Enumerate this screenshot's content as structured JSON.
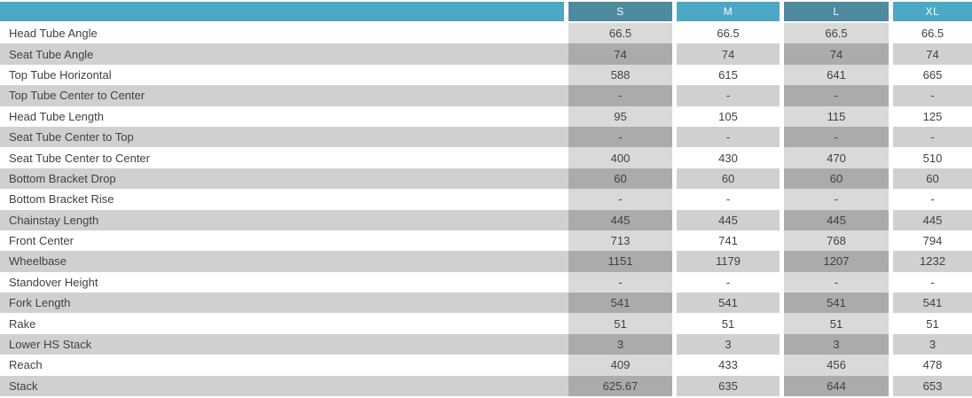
{
  "colors": {
    "header_teal_light": "#4da8c4",
    "header_teal_dark": "#4e8b9f",
    "row_gray": "#d0d0d0",
    "hl_on_white": "#d9d9d9",
    "hl_on_gray": "#ababab",
    "text_dark": "#414141",
    "header_text": "#f4fafc",
    "page_bg": "#ffffff"
  },
  "chart_data": {
    "type": "table",
    "columns": [
      {
        "label": "S",
        "highlighted": true
      },
      {
        "label": "M",
        "highlighted": false
      },
      {
        "label": "L",
        "highlighted": true
      },
      {
        "label": "XL",
        "highlighted": false
      }
    ],
    "rows": [
      {
        "label": "Head Tube Angle",
        "values": [
          "66.5",
          "66.5",
          "66.5",
          "66.5"
        ]
      },
      {
        "label": "Seat Tube Angle",
        "values": [
          "74",
          "74",
          "74",
          "74"
        ]
      },
      {
        "label": "Top Tube Horizontal",
        "values": [
          "588",
          "615",
          "641",
          "665"
        ]
      },
      {
        "label": "Top Tube Center to Center",
        "values": [
          "-",
          "-",
          "-",
          "-"
        ]
      },
      {
        "label": "Head Tube Length",
        "values": [
          "95",
          "105",
          "115",
          "125"
        ]
      },
      {
        "label": "Seat Tube Center to Top",
        "values": [
          "-",
          "-",
          "-",
          "-"
        ]
      },
      {
        "label": "Seat Tube Center to Center",
        "values": [
          "400",
          "430",
          "470",
          "510"
        ]
      },
      {
        "label": "Bottom Bracket Drop",
        "values": [
          "60",
          "60",
          "60",
          "60"
        ]
      },
      {
        "label": "Bottom Bracket Rise",
        "values": [
          "-",
          "-",
          "-",
          "-"
        ]
      },
      {
        "label": "Chainstay Length",
        "values": [
          "445",
          "445",
          "445",
          "445"
        ]
      },
      {
        "label": "Front Center",
        "values": [
          "713",
          "741",
          "768",
          "794"
        ]
      },
      {
        "label": "Wheelbase",
        "values": [
          "1151",
          "1179",
          "1207",
          "1232"
        ]
      },
      {
        "label": "Standover Height",
        "values": [
          "-",
          "-",
          "-",
          "-"
        ]
      },
      {
        "label": "Fork Length",
        "values": [
          "541",
          "541",
          "541",
          "541"
        ]
      },
      {
        "label": "Rake",
        "values": [
          "51",
          "51",
          "51",
          "51"
        ]
      },
      {
        "label": "Lower HS Stack",
        "values": [
          "3",
          "3",
          "3",
          "3"
        ]
      },
      {
        "label": "Reach",
        "values": [
          "409",
          "433",
          "456",
          "478"
        ]
      },
      {
        "label": "Stack",
        "values": [
          "625.67",
          "635",
          "644",
          "653"
        ]
      }
    ]
  }
}
